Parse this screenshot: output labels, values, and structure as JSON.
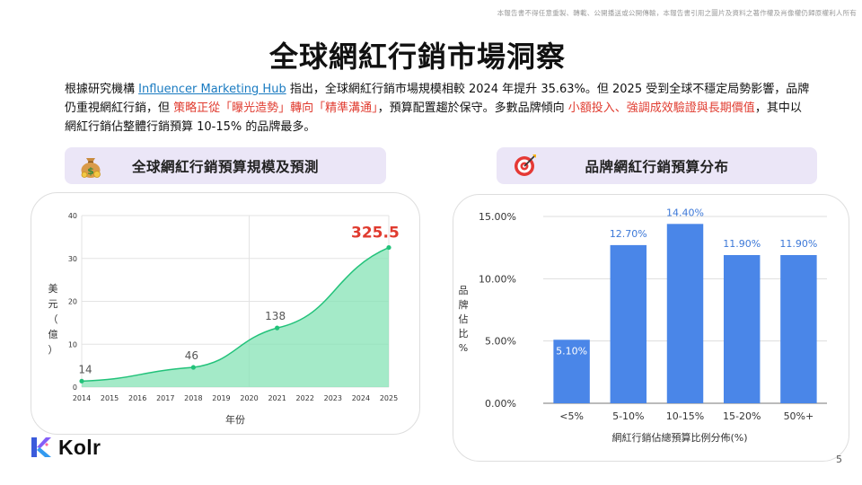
{
  "disclaimer": "本報告書不得任意重製、轉載、公開播送或公開傳輸，本報告書引用之圖片及資料之著作權及肖像權仍歸原權利人所有",
  "title": "全球網紅行銷市場洞察",
  "intro": {
    "p1": "根據研究機構 ",
    "link": "Influencer Marketing Hub",
    "p2": " 指出，全球網紅行銷市場規模相較  2024 年提升 35.63%。但 2025 受到全球不穩定局勢影響，品牌仍重視網紅行銷，但 ",
    "red1": "策略正從「曝光造勢」轉向「精準溝通」",
    "p3": "，預算配置趨於保守。多數品牌傾向 ",
    "red2": "小額投入、強調成效驗證與長期價值",
    "p4": "，其中以網紅行銷佔整體行銷預算  10-15% 的品牌最多。"
  },
  "left_header": {
    "label": "全球網紅行銷預算規模及預測",
    "icon": "money-bag-icon"
  },
  "right_header": {
    "label": "品牌網紅行銷預算分布",
    "icon": "target-icon"
  },
  "colors": {
    "area_fill": "#86e3b5",
    "area_line": "#22c27a",
    "highlight_red": "#e03b2f",
    "bar_blue": "#4a86e8",
    "bar_label_blue": "#3c78d8",
    "header_bg": "#ebe6f7"
  },
  "chart_data": [
    {
      "type": "area",
      "x": [
        "2014",
        "2015",
        "2016",
        "2017",
        "2018",
        "2019",
        "2020",
        "2021",
        "2022",
        "2023",
        "2024",
        "2025"
      ],
      "ylabel": "美元（億）",
      "xlabel": "年份",
      "y_ticks": [
        "0",
        "10",
        "20",
        "30",
        "40"
      ],
      "ylim": [
        0,
        40
      ],
      "points": [
        {
          "x": "2014",
          "value": 1.4,
          "label": "14"
        },
        {
          "x": "2018",
          "value": 4.6,
          "label": "46"
        },
        {
          "x": "2021",
          "value": 13.8,
          "label": "138"
        },
        {
          "x": "2025",
          "value": 32.55,
          "label": "325.5"
        }
      ],
      "grid": true
    },
    {
      "type": "bar",
      "categories": [
        "<5%",
        "5-10%",
        "10-15%",
        "15-20%",
        "50%+"
      ],
      "values": [
        5.1,
        12.7,
        14.4,
        11.9,
        11.9
      ],
      "value_labels": [
        "5.10%",
        "12.70%",
        "14.40%",
        "11.90%",
        "11.90%"
      ],
      "ylabel": "品牌佔比%",
      "xlabel": "網紅行銷佔總預算比例分佈(%)",
      "y_ticks": [
        "0.00%",
        "5.00%",
        "10.00%",
        "15.00%"
      ],
      "ylim": [
        0,
        15
      ],
      "grid": true
    }
  ],
  "logo_text": "Kolr",
  "page_number": "5"
}
